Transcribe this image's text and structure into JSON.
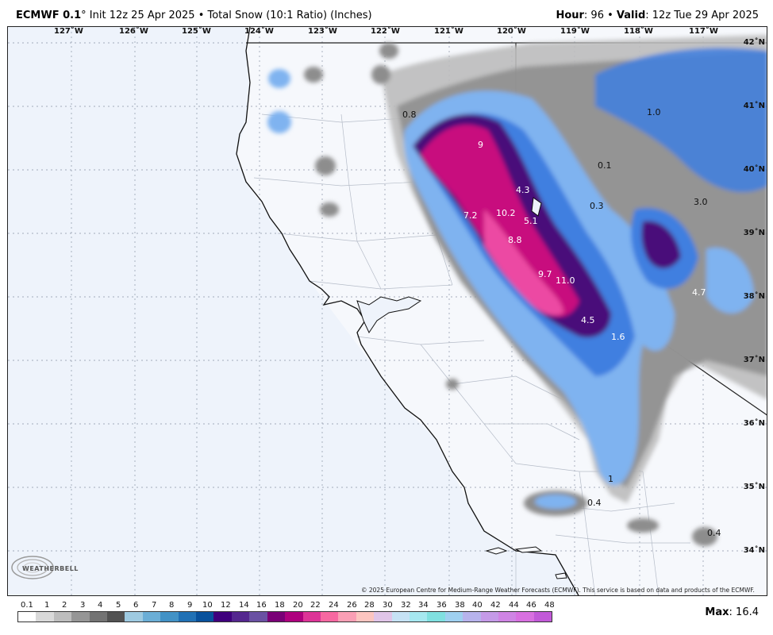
{
  "header": {
    "model": "ECMWF 0.1",
    "degree": "°",
    "init": " Init 12z 25 Apr 2025 • Total Snow (10:1 Ratio) (Inches)",
    "hour_label": "Hour",
    "hour_value": ": 96 • ",
    "valid_label": "Valid",
    "valid_value": ": 12z Tue 29 Apr 2025"
  },
  "map": {
    "longitude_labels": [
      "127˚W",
      "126˚W",
      "125˚W",
      "124˚W",
      "123˚W",
      "122˚W",
      "121˚W",
      "120˚W",
      "119˚W",
      "118˚W",
      "117˚W"
    ],
    "latitude_labels": [
      "42˚N",
      "41˚N",
      "40˚N",
      "39˚N",
      "38˚N",
      "37˚N",
      "36˚N",
      "35˚N",
      "34˚N"
    ],
    "value_labels": [
      "0.8",
      "9",
      "4.3",
      "10.2",
      "7.2",
      "5.1",
      "8.8",
      "9.7",
      "11.0",
      "4.5",
      "1.6",
      "1.0",
      "0.1",
      "0.3",
      "3.0",
      "4.7",
      "0.4",
      "0.4",
      "1"
    ],
    "copyright": "© 2025 European Centre for Medium-Range Weather Forecasts (ECMWF). This service is based on data and products of the ECMWF.",
    "logo_text": "WEATHERBELL"
  },
  "legend": {
    "labels": [
      "0.1",
      "1",
      "2",
      "3",
      "4",
      "5",
      "6",
      "7",
      "8",
      "9",
      "10",
      "12",
      "14",
      "16",
      "18",
      "20",
      "22",
      "24",
      "26",
      "28",
      "30",
      "32",
      "34",
      "36",
      "38",
      "40",
      "42",
      "44",
      "46",
      "48"
    ],
    "colors": [
      "#ffffff",
      "#d9d9d9",
      "#bdbdbd",
      "#969696",
      "#737373",
      "#525252",
      "#9ecae1",
      "#6baed6",
      "#4292c6",
      "#2171b5",
      "#08519c",
      "#3f007d",
      "#54278f",
      "#6a51a3",
      "#7a0177",
      "#ae017e",
      "#dd3497",
      "#f768a1",
      "#fa9fb5",
      "#fcc5c0",
      "#e0c5e8",
      "#c6e2f5",
      "#a6e8f0",
      "#80e0e0",
      "#9fd0f0",
      "#b7b3ec",
      "#c59ae8",
      "#cf84e4",
      "#d870e0",
      "#c25ad8"
    ],
    "max_label": "Max",
    "max_value": ": 16.4"
  },
  "colors": {
    "ocean": "#eef3fb",
    "land": "#f6f8fc",
    "coast": "#111111",
    "border": "#9aa0aa",
    "gray_light": "#b9b9b9",
    "gray_dark": "#6e6e6e",
    "blue_light": "#7fb3f0",
    "blue": "#3f7fe0",
    "blue_dark": "#2650c8",
    "purple": "#4a0a7a",
    "magenta": "#c8107e",
    "pink": "#ec4aa3"
  }
}
